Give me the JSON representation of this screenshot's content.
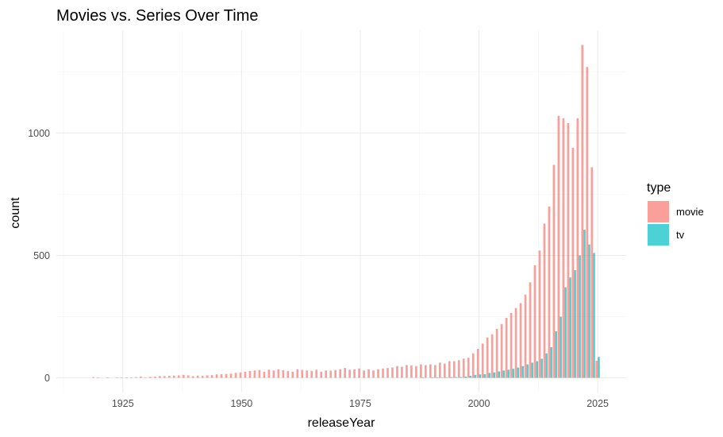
{
  "chart_data": {
    "type": "bar",
    "title": "Movies vs. Series Over Time",
    "xlabel": "releaseYear",
    "ylabel": "count",
    "xlim": [
      1911,
      2031
    ],
    "ylim": [
      -60,
      1420
    ],
    "xticks": [
      1925,
      1950,
      1975,
      2000,
      2025
    ],
    "yticks": [
      0,
      500,
      1000
    ],
    "grid": true,
    "legend": {
      "title": "type",
      "position": "right"
    },
    "series": [
      {
        "name": "movie",
        "color": "#F8766D",
        "points": [
          [
            1919,
            3
          ],
          [
            1920,
            2
          ],
          [
            1922,
            1
          ],
          [
            1924,
            2
          ],
          [
            1925,
            1
          ],
          [
            1926,
            1
          ],
          [
            1927,
            1
          ],
          [
            1928,
            3
          ],
          [
            1929,
            5
          ],
          [
            1930,
            2
          ],
          [
            1931,
            4
          ],
          [
            1932,
            5
          ],
          [
            1933,
            7
          ],
          [
            1934,
            7
          ],
          [
            1935,
            8
          ],
          [
            1936,
            9
          ],
          [
            1937,
            10
          ],
          [
            1938,
            12
          ],
          [
            1939,
            10
          ],
          [
            1940,
            7
          ],
          [
            1941,
            9
          ],
          [
            1942,
            8
          ],
          [
            1943,
            10
          ],
          [
            1944,
            11
          ],
          [
            1945,
            14
          ],
          [
            1946,
            15
          ],
          [
            1947,
            16
          ],
          [
            1948,
            17
          ],
          [
            1949,
            20
          ],
          [
            1950,
            22
          ],
          [
            1951,
            25
          ],
          [
            1952,
            28
          ],
          [
            1953,
            30
          ],
          [
            1954,
            32
          ],
          [
            1955,
            25
          ],
          [
            1956,
            33
          ],
          [
            1957,
            30
          ],
          [
            1958,
            35
          ],
          [
            1959,
            31
          ],
          [
            1960,
            28
          ],
          [
            1961,
            25
          ],
          [
            1962,
            35
          ],
          [
            1963,
            32
          ],
          [
            1964,
            30
          ],
          [
            1965,
            28
          ],
          [
            1966,
            33
          ],
          [
            1967,
            25
          ],
          [
            1968,
            30
          ],
          [
            1969,
            29
          ],
          [
            1970,
            32
          ],
          [
            1971,
            35
          ],
          [
            1972,
            40
          ],
          [
            1973,
            33
          ],
          [
            1974,
            35
          ],
          [
            1975,
            38
          ],
          [
            1976,
            30
          ],
          [
            1977,
            35
          ],
          [
            1978,
            30
          ],
          [
            1979,
            35
          ],
          [
            1980,
            38
          ],
          [
            1981,
            40
          ],
          [
            1982,
            42
          ],
          [
            1983,
            48
          ],
          [
            1984,
            45
          ],
          [
            1985,
            52
          ],
          [
            1986,
            50
          ],
          [
            1987,
            48
          ],
          [
            1988,
            55
          ],
          [
            1989,
            52
          ],
          [
            1990,
            55
          ],
          [
            1991,
            52
          ],
          [
            1992,
            62
          ],
          [
            1993,
            58
          ],
          [
            1994,
            68
          ],
          [
            1995,
            68
          ],
          [
            1996,
            72
          ],
          [
            1997,
            78
          ],
          [
            1998,
            82
          ],
          [
            1999,
            100
          ],
          [
            2000,
            118
          ],
          [
            2001,
            140
          ],
          [
            2002,
            165
          ],
          [
            2003,
            178
          ],
          [
            2004,
            200
          ],
          [
            2005,
            220
          ],
          [
            2006,
            245
          ],
          [
            2007,
            265
          ],
          [
            2008,
            285
          ],
          [
            2009,
            305
          ],
          [
            2010,
            340
          ],
          [
            2011,
            390
          ],
          [
            2012,
            460
          ],
          [
            2013,
            520
          ],
          [
            2014,
            630
          ],
          [
            2015,
            700
          ],
          [
            2016,
            870
          ],
          [
            2017,
            1070
          ],
          [
            2018,
            1060
          ],
          [
            2019,
            1040
          ],
          [
            2020,
            940
          ],
          [
            2021,
            1060
          ],
          [
            2022,
            1360
          ],
          [
            2023,
            1270
          ],
          [
            2024,
            860
          ],
          [
            2025,
            70
          ]
        ]
      },
      {
        "name": "tv",
        "color": "#00BFC4",
        "points": [
          [
            1988,
            1
          ],
          [
            1990,
            2
          ],
          [
            1991,
            1
          ],
          [
            1992,
            2
          ],
          [
            1993,
            2
          ],
          [
            1994,
            3
          ],
          [
            1995,
            3
          ],
          [
            1996,
            3
          ],
          [
            1997,
            5
          ],
          [
            1998,
            8
          ],
          [
            1999,
            12
          ],
          [
            2000,
            14
          ],
          [
            2001,
            15
          ],
          [
            2002,
            20
          ],
          [
            2003,
            22
          ],
          [
            2004,
            26
          ],
          [
            2005,
            30
          ],
          [
            2006,
            33
          ],
          [
            2007,
            37
          ],
          [
            2008,
            42
          ],
          [
            2009,
            48
          ],
          [
            2010,
            55
          ],
          [
            2011,
            62
          ],
          [
            2012,
            68
          ],
          [
            2013,
            78
          ],
          [
            2014,
            100
          ],
          [
            2015,
            125
          ],
          [
            2016,
            190
          ],
          [
            2017,
            250
          ],
          [
            2018,
            370
          ],
          [
            2019,
            410
          ],
          [
            2020,
            440
          ],
          [
            2021,
            500
          ],
          [
            2022,
            605
          ],
          [
            2023,
            545
          ],
          [
            2024,
            510
          ],
          [
            2025,
            85
          ]
        ]
      }
    ]
  }
}
